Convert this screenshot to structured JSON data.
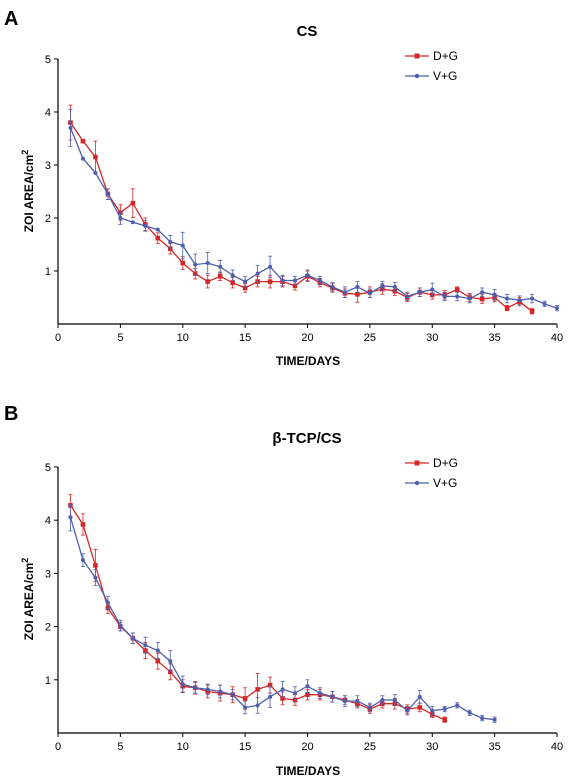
{
  "figure": {
    "colors": {
      "D+G": "#d62728",
      "V+G": "#4e5fae",
      "axis": "#000000"
    }
  },
  "chart_data": [
    {
      "type": "line",
      "panel": "A",
      "title": "CS",
      "xlabel": "TIME/DAYS",
      "ylabel": "ZOI AREA/cm",
      "ylabel_sup": "2",
      "xlim": [
        0,
        40
      ],
      "ylim": [
        0,
        5
      ],
      "xticks": [
        0,
        5,
        10,
        15,
        20,
        25,
        30,
        35,
        40
      ],
      "yticks": [
        1,
        2,
        3,
        4,
        5
      ],
      "grid": false,
      "legend_position": "top-right",
      "series": [
        {
          "name": "D+G",
          "color": "#d62728",
          "marker": "square",
          "x": [
            1,
            2,
            3,
            4,
            5,
            6,
            7,
            8,
            9,
            10,
            11,
            12,
            13,
            14,
            15,
            16,
            17,
            18,
            19,
            20,
            21,
            22,
            23,
            24,
            25,
            26,
            27,
            28,
            29,
            30,
            31,
            32,
            33,
            34,
            35,
            36,
            37,
            38
          ],
          "y": [
            3.8,
            3.45,
            3.15,
            2.45,
            2.1,
            2.28,
            1.88,
            1.62,
            1.42,
            1.15,
            0.95,
            0.8,
            0.9,
            0.78,
            0.68,
            0.8,
            0.8,
            0.8,
            0.72,
            0.9,
            0.78,
            0.68,
            0.58,
            0.56,
            0.6,
            0.66,
            0.62,
            0.5,
            0.6,
            0.55,
            0.55,
            0.65,
            0.5,
            0.47,
            0.5,
            0.3,
            0.42,
            0.24
          ],
          "err": [
            0.33,
            0,
            0.3,
            0.1,
            0.15,
            0.27,
            0.12,
            0.1,
            0.1,
            0.12,
            0.1,
            0.12,
            0.08,
            0.1,
            0.08,
            0.1,
            0.12,
            0.1,
            0.08,
            0.1,
            0.08,
            0.08,
            0.08,
            0.15,
            0.1,
            0.1,
            0.08,
            0.08,
            0.08,
            0.08,
            0.08,
            0.05,
            0.08,
            0.08,
            0.08,
            0.05,
            0.08,
            0.05
          ]
        },
        {
          "name": "V+G",
          "color": "#4e5fae",
          "marker": "circle",
          "x": [
            1,
            2,
            3,
            4,
            5,
            6,
            7,
            8,
            9,
            10,
            11,
            12,
            13,
            14,
            15,
            16,
            17,
            18,
            19,
            20,
            21,
            22,
            23,
            24,
            25,
            26,
            27,
            28,
            29,
            30,
            31,
            32,
            33,
            34,
            35,
            36,
            37,
            38,
            39,
            40
          ],
          "y": [
            3.7,
            3.12,
            2.85,
            2.45,
            2.0,
            1.92,
            1.85,
            1.78,
            1.55,
            1.48,
            1.12,
            1.15,
            1.08,
            0.92,
            0.8,
            0.95,
            1.08,
            0.82,
            0.82,
            0.92,
            0.82,
            0.7,
            0.6,
            0.7,
            0.58,
            0.72,
            0.7,
            0.52,
            0.6,
            0.65,
            0.52,
            0.52,
            0.48,
            0.6,
            0.55,
            0.48,
            0.45,
            0.48,
            0.38,
            0.3
          ],
          "err": [
            0.35,
            0,
            0,
            0.1,
            0.12,
            0,
            0.1,
            0,
            0.12,
            0.25,
            0.2,
            0.2,
            0.12,
            0.1,
            0.1,
            0.15,
            0.2,
            0.1,
            0.08,
            0.1,
            0.08,
            0.08,
            0.1,
            0.1,
            0.08,
            0.08,
            0.08,
            0.08,
            0.08,
            0.12,
            0.08,
            0.08,
            0.08,
            0.08,
            0.1,
            0.08,
            0.08,
            0.08,
            0.05,
            0.05
          ]
        }
      ]
    },
    {
      "type": "line",
      "panel": "B",
      "title": "β-TCP/CS",
      "xlabel": "TIME/DAYS",
      "ylabel": "ZOI AREA/cm",
      "ylabel_sup": "2",
      "xlim": [
        0,
        40
      ],
      "ylim": [
        0,
        5
      ],
      "xticks": [
        0,
        5,
        10,
        15,
        20,
        25,
        30,
        35,
        40
      ],
      "yticks": [
        1,
        2,
        3,
        4,
        5
      ],
      "grid": false,
      "legend_position": "top-right",
      "series": [
        {
          "name": "D+G",
          "color": "#d62728",
          "marker": "square",
          "x": [
            1,
            2,
            3,
            4,
            5,
            6,
            7,
            8,
            9,
            10,
            11,
            12,
            13,
            14,
            15,
            16,
            17,
            18,
            19,
            20,
            21,
            22,
            23,
            24,
            25,
            26,
            27,
            28,
            29,
            30,
            31
          ],
          "y": [
            4.28,
            3.92,
            3.15,
            2.35,
            2.0,
            1.78,
            1.55,
            1.35,
            1.15,
            0.88,
            0.85,
            0.78,
            0.75,
            0.72,
            0.65,
            0.82,
            0.9,
            0.65,
            0.62,
            0.72,
            0.72,
            0.68,
            0.62,
            0.55,
            0.45,
            0.55,
            0.55,
            0.45,
            0.48,
            0.35,
            0.25
          ],
          "err": [
            0.2,
            0.2,
            0.3,
            0.1,
            0.08,
            0.1,
            0.15,
            0.15,
            0.15,
            0.12,
            0.12,
            0.12,
            0.15,
            0.15,
            0.2,
            0.3,
            0.15,
            0.12,
            0.1,
            0.1,
            0.1,
            0.1,
            0.08,
            0.08,
            0.08,
            0.08,
            0.1,
            0.08,
            0.08,
            0.06,
            0.05
          ]
        },
        {
          "name": "V+G",
          "color": "#4e5fae",
          "marker": "circle",
          "x": [
            1,
            2,
            3,
            4,
            5,
            6,
            7,
            8,
            9,
            10,
            11,
            12,
            13,
            14,
            15,
            16,
            17,
            18,
            19,
            20,
            21,
            22,
            23,
            24,
            25,
            26,
            27,
            28,
            29,
            30,
            31,
            32,
            33,
            34,
            35
          ],
          "y": [
            4.05,
            3.25,
            2.92,
            2.45,
            2.02,
            1.78,
            1.65,
            1.55,
            1.35,
            0.92,
            0.85,
            0.82,
            0.78,
            0.72,
            0.48,
            0.52,
            0.68,
            0.82,
            0.75,
            0.88,
            0.75,
            0.68,
            0.6,
            0.6,
            0.48,
            0.62,
            0.62,
            0.42,
            0.68,
            0.42,
            0.45,
            0.52,
            0.38,
            0.28,
            0.25
          ],
          "err": [
            0.25,
            0.12,
            0.15,
            0.12,
            0.1,
            0.1,
            0.15,
            0.15,
            0.2,
            0.15,
            0.1,
            0.1,
            0.12,
            0.1,
            0.12,
            0.15,
            0.2,
            0.15,
            0.12,
            0.12,
            0.1,
            0.1,
            0.1,
            0.1,
            0.08,
            0.08,
            0.1,
            0.08,
            0.12,
            0.08,
            0.05,
            0.05,
            0.05,
            0.05,
            0.05
          ]
        }
      ]
    }
  ]
}
